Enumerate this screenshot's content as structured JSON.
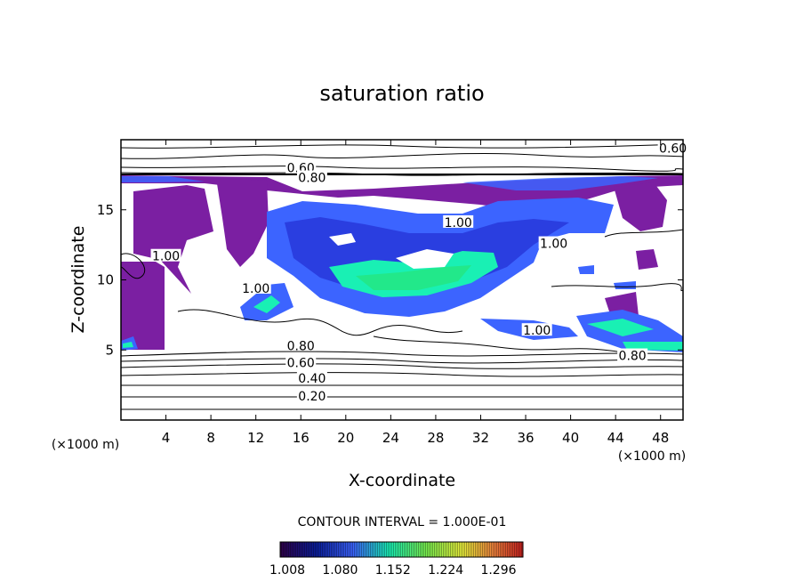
{
  "chart_data": {
    "type": "contour",
    "title": "saturation ratio",
    "xlabel": "X-coordinate",
    "ylabel": "Z-coordinate",
    "x_unit_label": "(×1000 m)",
    "z_unit_label": "(×1000 m)",
    "xlim": [
      0,
      50
    ],
    "ylim": [
      0,
      20
    ],
    "x_ticks": [
      4,
      8,
      12,
      16,
      20,
      24,
      28,
      32,
      36,
      40,
      44,
      48
    ],
    "y_ticks": [
      5,
      10,
      15
    ],
    "contour_interval_text": "CONTOUR INTERVAL = 1.000E-01",
    "contour_labels": [
      {
        "text": "0.60",
        "x": 49.1,
        "z": 19.4
      },
      {
        "text": "0.60",
        "x": 16.0,
        "z": 18.0
      },
      {
        "text": "0.80",
        "x": 17.0,
        "z": 17.3
      },
      {
        "text": "1.00",
        "x": 30.0,
        "z": 14.1
      },
      {
        "text": "1.00",
        "x": 38.5,
        "z": 12.6
      },
      {
        "text": "1.00",
        "x": 4.0,
        "z": 11.7
      },
      {
        "text": "1.00",
        "x": 12.0,
        "z": 9.4
      },
      {
        "text": "1.00",
        "x": 37.0,
        "z": 6.4
      },
      {
        "text": "0.80",
        "x": 16.0,
        "z": 5.3
      },
      {
        "text": "0.60",
        "x": 16.0,
        "z": 4.1
      },
      {
        "text": "0.80",
        "x": 45.5,
        "z": 4.6
      },
      {
        "text": "0.40",
        "x": 17.0,
        "z": 3.0
      },
      {
        "text": "0.20",
        "x": 17.0,
        "z": 1.7
      }
    ],
    "colorbar": {
      "labels": [
        "1.008",
        "1.080",
        "1.152",
        "1.224",
        "1.296"
      ],
      "colors": [
        "#30004a",
        "#0a1e9c",
        "#3c64ff",
        "#19f0b4",
        "#78f050",
        "#eaf03c",
        "#f0823c",
        "#c81e1e"
      ]
    }
  }
}
